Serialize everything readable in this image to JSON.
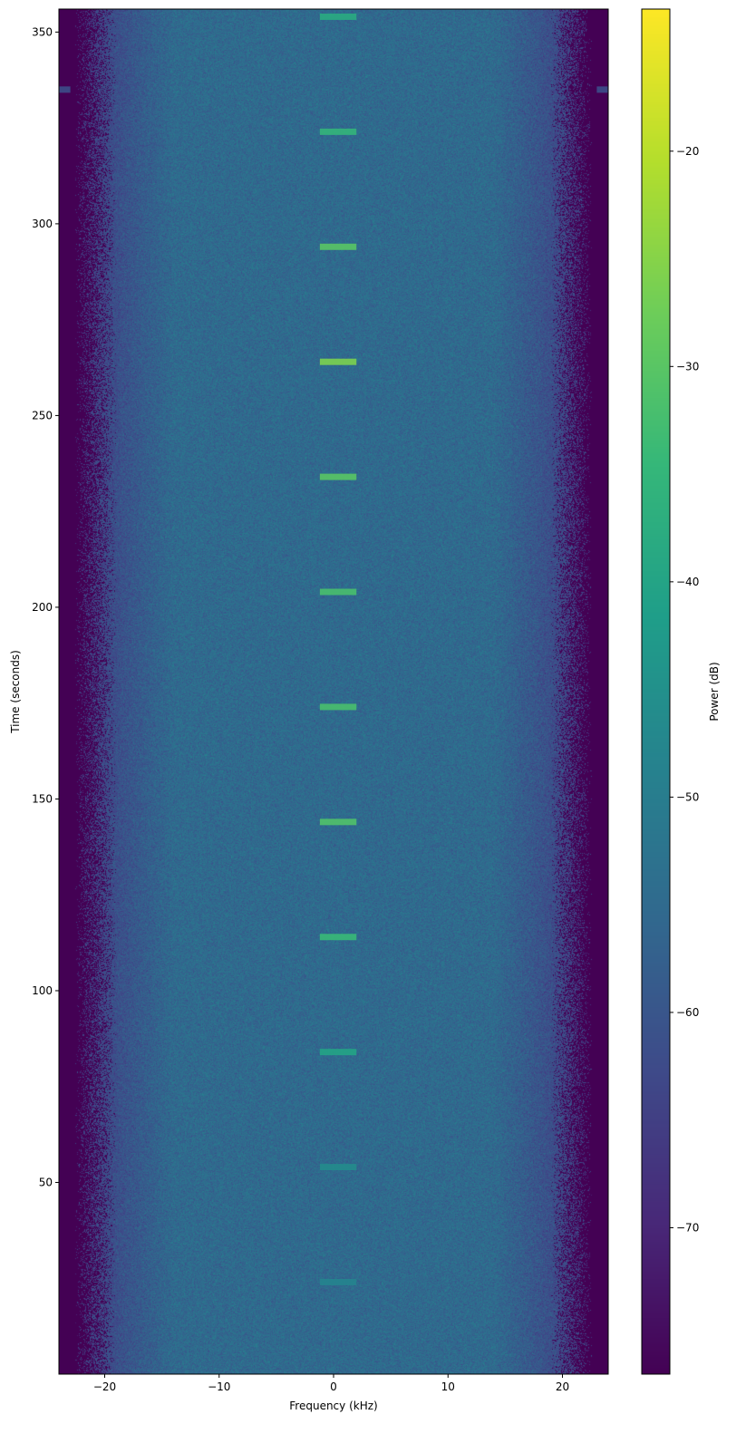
{
  "chart_data": {
    "type": "heatmap",
    "subtype": "spectrogram",
    "title": "",
    "xlabel": "Frequency (kHz)",
    "ylabel": "Time (seconds)",
    "xlim": [
      -24,
      24
    ],
    "ylim": [
      0,
      356
    ],
    "xticks": [
      -20,
      -10,
      0,
      10,
      20
    ],
    "yticks": [
      50,
      100,
      150,
      200,
      250,
      300,
      350
    ],
    "grid": false,
    "colormap": "viridis",
    "colorbar": {
      "label": "Power (dB)",
      "range": [
        -76.8,
        -13.4
      ],
      "ticks": [
        -70,
        -60,
        -50,
        -40,
        -30,
        -20
      ],
      "placement": "right"
    },
    "background": {
      "noise_floor_db": -55,
      "passband_khz": [
        -19,
        19
      ],
      "edge_level_db": -77
    },
    "bursts": [
      {
        "time_s": 354,
        "freq_khz": [
          -1.2,
          2.0
        ],
        "power_db": -38
      },
      {
        "time_s": 324,
        "freq_khz": [
          -1.2,
          2.0
        ],
        "power_db": -35
      },
      {
        "time_s": 294,
        "freq_khz": [
          -1.2,
          2.0
        ],
        "power_db": -30
      },
      {
        "time_s": 264,
        "freq_khz": [
          -1.2,
          2.0
        ],
        "power_db": -26
      },
      {
        "time_s": 234,
        "freq_khz": [
          -1.2,
          2.0
        ],
        "power_db": -30
      },
      {
        "time_s": 204,
        "freq_khz": [
          -1.2,
          2.0
        ],
        "power_db": -32
      },
      {
        "time_s": 174,
        "freq_khz": [
          -1.2,
          2.0
        ],
        "power_db": -32
      },
      {
        "time_s": 144,
        "freq_khz": [
          -1.2,
          2.0
        ],
        "power_db": -31
      },
      {
        "time_s": 114,
        "freq_khz": [
          -1.2,
          2.0
        ],
        "power_db": -34
      },
      {
        "time_s": 84,
        "freq_khz": [
          -1.2,
          2.0
        ],
        "power_db": -40
      },
      {
        "time_s": 54,
        "freq_khz": [
          -1.2,
          2.0
        ],
        "power_db": -46
      },
      {
        "time_s": 24,
        "freq_khz": [
          -1.2,
          2.0
        ],
        "power_db": -48
      }
    ],
    "edge_artifacts": [
      {
        "time_s": 335,
        "freq_khz": [
          -24,
          -23
        ],
        "power_db": -62
      },
      {
        "time_s": 335,
        "freq_khz": [
          23,
          24
        ],
        "power_db": -62
      }
    ]
  }
}
